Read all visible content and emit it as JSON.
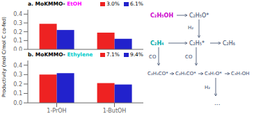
{
  "chart_data": [
    {
      "type": "bar",
      "title": [
        {
          "text": "a. MoKMMO- ",
          "color": "#000000"
        },
        {
          "text": "EtOH",
          "color": "#FF00FF"
        }
      ],
      "ylabel": "Productivity (mol C/mol C co-fed)",
      "categories": [
        "1-PrOH",
        "1-ButOH"
      ],
      "series": [
        {
          "name": "3.0%",
          "color": "#EE2222",
          "values": [
            0.29,
            0.19
          ]
        },
        {
          "name": "6.1%",
          "color": "#2222CC",
          "values": [
            0.22,
            0.12
          ]
        }
      ],
      "ylim": [
        0.0,
        0.45
      ],
      "yticks": [
        {
          "value": 0.0,
          "label": "0.0"
        },
        0.1,
        0.2,
        0.3,
        0.4
      ],
      "grid": false,
      "legend": "upper right",
      "tick_labels": "y",
      "annotations": [
        {
          "text": "C₂H₅OH",
          "color": "#CC00CC"
        },
        {
          "text": "C₂H₅O*",
          "color": "#334466"
        },
        {
          "text": "H₂",
          "color": "#334466"
        },
        {
          "text": "C₂H₄",
          "color": "#00AAAA"
        },
        {
          "text": "C₂H₅*",
          "color": "#334466"
        },
        {
          "text": "C₂H₆",
          "color": "#334466"
        },
        {
          "text": "CO",
          "color": "#334466"
        },
        {
          "text": "CO",
          "color": "#334466"
        },
        {
          "text": "C₂H₄CO*",
          "color": "#334466"
        },
        {
          "text": "C₂H₅CO*",
          "color": "#334466"
        },
        {
          "text": "C₃H₇O*",
          "color": "#334466"
        },
        {
          "text": "C₃H₇OH",
          "color": "#334466"
        },
        {
          "text": "H₂",
          "color": "#334466"
        },
        {
          "text": "...",
          "color": "#334466"
        }
      ]
    },
    {
      "type": "bar",
      "title": [
        {
          "text": "b. MoKMMO- ",
          "color": "#000000"
        },
        {
          "text": "Ethylene",
          "color": "#00CCCC"
        }
      ],
      "categories": [
        "1-PrOH",
        "1-ButOH"
      ],
      "series": [
        {
          "name": "7.1%",
          "color": "#EE2222",
          "values": [
            0.3,
            0.21
          ]
        },
        {
          "name": "9.4%",
          "color": "#2222CC",
          "values": [
            0.315,
            0.195
          ]
        }
      ],
      "ylim": [
        0.0,
        0.45
      ],
      "yticks": [
        {
          "value": 0.0,
          "label": "0.0"
        },
        0.1,
        0.2,
        0.3,
        0.4
      ],
      "grid": false,
      "legend": "upper right"
    }
  ]
}
